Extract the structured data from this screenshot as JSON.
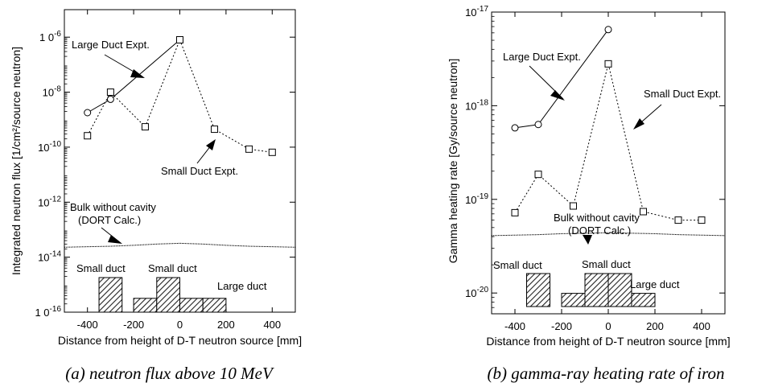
{
  "chart_data": [
    {
      "type": "line",
      "caption": "(a) neutron flux above 10 MeV",
      "xlabel": "Distance from height of D-T neutron source [mm]",
      "ylabel": "Integrated neutron flux [1/cm²/source neutron]",
      "yscale": "log",
      "xlim": [
        -500,
        500
      ],
      "ylim": [
        1e-16,
        1e-05
      ],
      "x_ticks": [
        -400,
        -200,
        0,
        200,
        400
      ],
      "x_tick_labels": [
        "-400",
        "-200",
        "0",
        "200",
        "400"
      ],
      "y_ticks": [
        1e-16,
        1e-14,
        1e-12,
        1e-10,
        1e-08,
        1e-06
      ],
      "y_tick_base": [
        "1 0",
        "10",
        "10",
        "10",
        "10",
        "1 0"
      ],
      "y_tick_exp": [
        "-16",
        "-14",
        "-12",
        "-10",
        "-8",
        "-6"
      ],
      "series": [
        {
          "name": "Large Duct Expt.",
          "marker": "circle",
          "style": "solid",
          "x": [
            -400,
            -300,
            0
          ],
          "y": [
            1.8e-09,
            5.5e-09,
            8e-07
          ]
        },
        {
          "name": "Small Duct Expt.",
          "marker": "square",
          "style": "dotted",
          "x": [
            -400,
            -300,
            -150,
            0,
            150,
            300,
            400
          ],
          "y": [
            2.6e-10,
            1e-08,
            5.5e-10,
            8e-07,
            4.5e-10,
            8.5e-11,
            6.5e-11
          ]
        },
        {
          "name": "Bulk without cavity (DORT Calc.)",
          "marker": "none",
          "style": "solid-thin",
          "x": [
            -500,
            -400,
            -300,
            -200,
            -100,
            0,
            100,
            200,
            300,
            400,
            500
          ],
          "y": [
            2.3e-14,
            2.4e-14,
            2.5e-14,
            2.7e-14,
            3e-14,
            3.2e-14,
            3e-14,
            2.7e-14,
            2.5e-14,
            2.4e-14,
            2.3e-14
          ]
        }
      ],
      "annotations": [
        {
          "text": "Large Duct Expt.",
          "anchor": "upper-left"
        },
        {
          "text": "Small Duct Expt.",
          "anchor": "middle-right"
        },
        {
          "lines": [
            "Bulk without cavity",
            "(DORT Calc.)"
          ],
          "anchor": "lower-left"
        }
      ],
      "duct_labels": {
        "small": "Small duct",
        "large": "Large duct"
      },
      "duct_bars": [
        {
          "x0": -350,
          "x1": -250,
          "level": 1.0
        },
        {
          "x0": -200,
          "x1": -100,
          "level": 0.4
        },
        {
          "x0": -100,
          "x1": 0,
          "level": 1.0
        },
        {
          "x0": 0,
          "x1": 100,
          "level": 0.4
        },
        {
          "x0": 100,
          "x1": 200,
          "level": 0.4
        }
      ]
    },
    {
      "type": "line",
      "caption": "(b) gamma-ray heating rate of iron",
      "xlabel": "Distance from height of D-T neutron source [mm]",
      "ylabel": "Gamma heating rate [Gy/source neutron]",
      "yscale": "log",
      "xlim": [
        -500,
        500
      ],
      "ylim": [
        6e-21,
        1e-17
      ],
      "x_ticks": [
        -400,
        -200,
        0,
        200,
        400
      ],
      "x_tick_labels": [
        "-400",
        "-200",
        "0",
        "200",
        "400"
      ],
      "y_ticks": [
        1e-20,
        1e-19,
        1e-18,
        1e-17
      ],
      "y_tick_base": [
        "10",
        "10",
        "10",
        "10"
      ],
      "y_tick_exp": [
        "-20",
        "-19",
        "-18",
        "-17"
      ],
      "series": [
        {
          "name": "Large Duct Expt.",
          "marker": "circle",
          "style": "solid",
          "x": [
            -400,
            -300,
            0
          ],
          "y": [
            5.8e-19,
            6.3e-19,
            6.5e-18
          ]
        },
        {
          "name": "Small Duct Expt.",
          "marker": "square",
          "style": "dotted",
          "x": [
            -400,
            -300,
            -150,
            0,
            150,
            300,
            400
          ],
          "y": [
            7.2e-20,
            1.85e-19,
            8.5e-20,
            2.8e-18,
            7.4e-20,
            6e-20,
            6e-20
          ]
        },
        {
          "name": "Bulk without cavity (DORT Calc.)",
          "marker": "none",
          "style": "solid-thin",
          "x": [
            -500,
            -400,
            -300,
            -200,
            -100,
            0,
            100,
            200,
            300,
            400,
            500
          ],
          "y": [
            4.1e-20,
            4.15e-20,
            4.2e-20,
            4.3e-20,
            4.35e-20,
            4.4e-20,
            4.35e-20,
            4.3e-20,
            4.2e-20,
            4.15e-20,
            4.1e-20
          ]
        }
      ],
      "annotations": [
        {
          "text": "Large Duct Expt.",
          "anchor": "upper-left"
        },
        {
          "text": "Small Duct Expt.",
          "anchor": "upper-right"
        },
        {
          "lines": [
            "Bulk without cavity",
            "(DORT Calc.)"
          ],
          "anchor": "lower-middle"
        }
      ],
      "duct_labels": {
        "small": "Small duct",
        "large": "Large duct"
      },
      "duct_bars": [
        {
          "x0": -350,
          "x1": -250,
          "level": 1.0
        },
        {
          "x0": -200,
          "x1": -100,
          "level": 0.4
        },
        {
          "x0": -100,
          "x1": 0,
          "level": 1.0
        },
        {
          "x0": 0,
          "x1": 100,
          "level": 1.0
        },
        {
          "x0": 100,
          "x1": 200,
          "level": 0.4
        }
      ]
    }
  ]
}
